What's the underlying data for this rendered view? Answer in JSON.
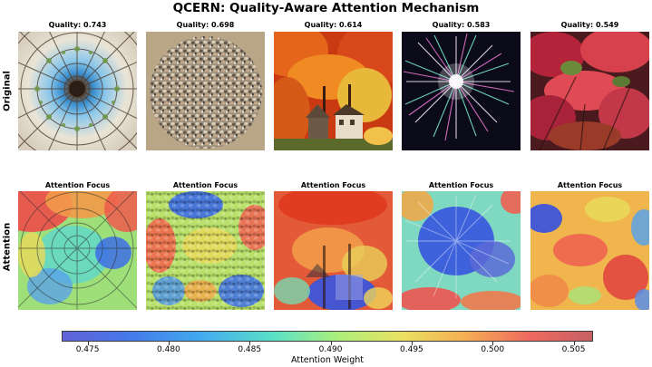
{
  "figure": {
    "title": "QCERN: Quality-Aware Attention Mechanism",
    "row_labels": [
      "Original",
      "Attention"
    ],
    "attention_title": "Attention Focus"
  },
  "panels": [
    {
      "quality_label": "Quality: 0.743",
      "quality": 0.743,
      "subject": "glass-dome-ceiling"
    },
    {
      "quality_label": "Quality: 0.698",
      "quality": 0.698,
      "subject": "pebbles-circle"
    },
    {
      "quality_label": "Quality: 0.614",
      "quality": 0.614,
      "subject": "autumn-trees-house"
    },
    {
      "quality_label": "Quality: 0.583",
      "quality": 0.583,
      "subject": "fireworks"
    },
    {
      "quality_label": "Quality: 0.549",
      "quality": 0.549,
      "subject": "red-autumn-foliage"
    }
  ],
  "colorbar": {
    "label": "Attention Weight",
    "range": [
      0.4734,
      0.5062
    ],
    "ticks": [
      "0.475",
      "0.480",
      "0.485",
      "0.490",
      "0.495",
      "0.500",
      "0.505"
    ],
    "colors": [
      "#5a5bd6",
      "#3d70e8",
      "#38a6f0",
      "#52e0c4",
      "#a8ee74",
      "#e9e05a",
      "#f5ab4b",
      "#ee6257",
      "#c4585c"
    ]
  }
}
